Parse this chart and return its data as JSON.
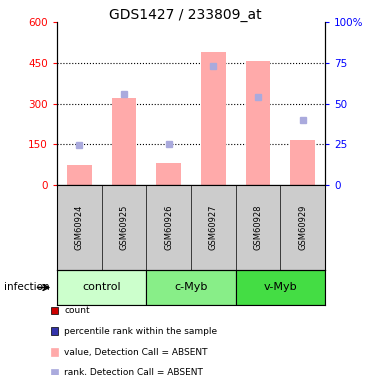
{
  "title": "GDS1427 / 233809_at",
  "samples": [
    "GSM60924",
    "GSM60925",
    "GSM60926",
    "GSM60927",
    "GSM60928",
    "GSM60929"
  ],
  "groups": [
    {
      "name": "control",
      "indices": [
        0,
        1
      ],
      "color": "#ccffcc"
    },
    {
      "name": "c-Myb",
      "indices": [
        2,
        3
      ],
      "color": "#88ee88"
    },
    {
      "name": "v-Myb",
      "indices": [
        4,
        5
      ],
      "color": "#44dd44"
    }
  ],
  "values_absent": [
    75,
    320,
    80,
    490,
    455,
    165
  ],
  "ranks_absent": [
    148,
    335,
    152,
    438,
    325,
    238
  ],
  "left_ylim": [
    0,
    600
  ],
  "right_ylim": [
    0,
    100
  ],
  "left_yticks": [
    0,
    150,
    300,
    450,
    600
  ],
  "right_yticks": [
    0,
    25,
    50,
    75,
    100
  ],
  "right_yticklabels": [
    "0",
    "25",
    "50",
    "75",
    "100%"
  ],
  "bar_color_absent": "#ffaaaa",
  "rank_color_absent": "#aaaadd",
  "background_labels": "#cccccc",
  "infection_label": "infection",
  "legend_items": [
    {
      "label": "count",
      "color": "#cc0000"
    },
    {
      "label": "percentile rank within the sample",
      "color": "#3333aa"
    },
    {
      "label": "value, Detection Call = ABSENT",
      "color": "#ffaaaa"
    },
    {
      "label": "rank, Detection Call = ABSENT",
      "color": "#aaaadd"
    }
  ]
}
